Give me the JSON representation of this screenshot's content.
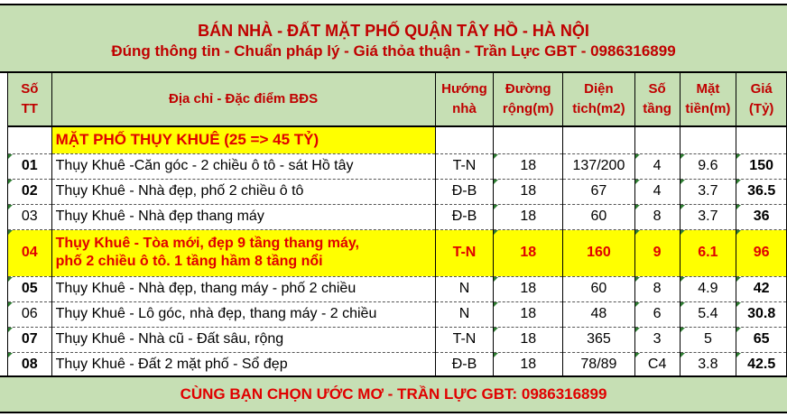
{
  "title": {
    "line1": "BÁN NHÀ - ĐẤT MẶT PHỐ QUẬN TÂY HỒ - HÀ NỘI",
    "line2": "Đúng thông tin - Chuẩn pháp lý - Giá thỏa thuận - Trần Lực GBT - 0986316899"
  },
  "headers": {
    "stt": [
      "Số",
      "TT"
    ],
    "addr": "Địa chỉ - Đặc điểm BĐS",
    "dir": [
      "Hướng",
      "nhà"
    ],
    "road": [
      "Đường",
      "rộng(m)"
    ],
    "area": [
      "Diện",
      "tich(m2)"
    ],
    "floors": [
      "Số",
      "tầng"
    ],
    "front": [
      "Mặt",
      "tiền(m)"
    ],
    "price": [
      "Giá",
      "(Tỷ)"
    ]
  },
  "section": "MẶT PHỐ THỤY KHUÊ (25 => 45 TỶ)",
  "rows": [
    {
      "stt": "01",
      "addr": "Thụy Khuê -Căn góc - 2 chiều ô tô - sát Hồ tây",
      "dir": "T-N",
      "road": "18",
      "area": "137/200",
      "floors": "4",
      "front": "9.6",
      "price": "150"
    },
    {
      "stt": "02",
      "addr": "Thụy Khuê - Nhà đẹp, phố 2 chiều ô tô",
      "dir": "Đ-B",
      "road": "18",
      "area": "67",
      "floors": "4",
      "front": "3.7",
      "price": "36.5"
    },
    {
      "stt": "03",
      "addr": "Thụy Khuê - Nhà đẹp thang máy",
      "dir": "Đ-B",
      "road": "18",
      "area": "60",
      "floors": "8",
      "front": "3.7",
      "price": "36"
    },
    {
      "stt": "04",
      "addr": "Thụy Khuê - Tòa mới, đẹp 9 tầng thang máy,",
      "addr2": "phố 2 chiều ô tô. 1 tầng hầm 8 tầng nổi",
      "dir": "T-N",
      "road": "18",
      "area": "160",
      "floors": "9",
      "front": "6.1",
      "price": "96"
    },
    {
      "stt": "05",
      "addr": "Thụy Khuê - Nhà đẹp, thang máy - phố 2 chiều",
      "dir": "N",
      "road": "18",
      "area": "60",
      "floors": "8",
      "front": "4.9",
      "price": "42"
    },
    {
      "stt": "06",
      "addr": "Thụy Khuê - Lô góc, nhà đẹp, thang máy - 2 chiều",
      "dir": "N",
      "road": "18",
      "area": "48",
      "floors": "6",
      "front": "5.4",
      "price": "30.8"
    },
    {
      "stt": "07",
      "addr": "Thụy Khuê - Nhà cũ - Đất sâu, rộng",
      "dir": "T-N",
      "road": "18",
      "area": "365",
      "floors": "3",
      "front": "5",
      "price": "65"
    },
    {
      "stt": "08",
      "addr": "Thụy Khuê - Đất 2 mặt phố - Sổ đẹp",
      "dir": "Đ-B",
      "road": "18",
      "area": "78/89",
      "floors": "C4",
      "front": "3.8",
      "price": "42.5"
    }
  ],
  "footer": "CÙNG BẠN CHỌN ƯỚC MƠ - TRẦN LỰC GBT: 0986316899"
}
